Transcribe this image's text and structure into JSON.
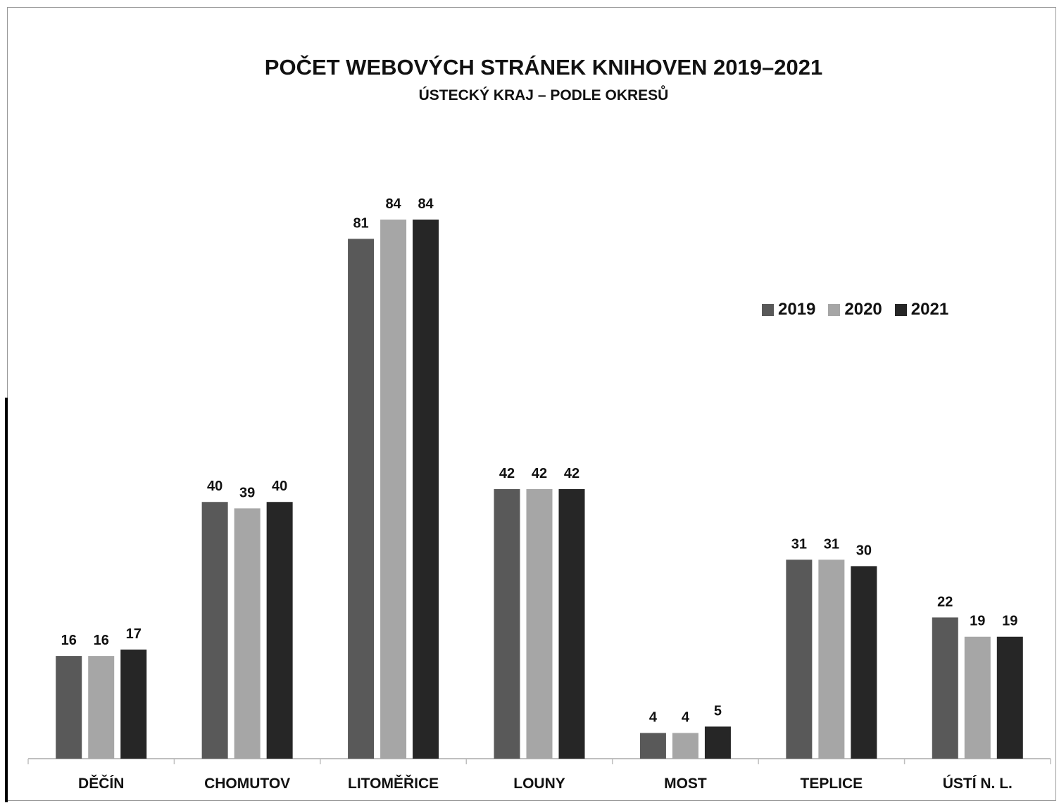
{
  "chart_data": {
    "type": "bar",
    "title": "POČET WEBOVÝCH STRÁNEK KNIHOVEN 2019–2021",
    "subtitle": "ÚSTECKÝ KRAJ – PODLE OKRESŮ",
    "categories": [
      "DĚČÍN",
      "CHOMUTOV",
      "LITOMĚŘICE",
      "LOUNY",
      "MOST",
      "TEPLICE",
      "ÚSTÍ N. L."
    ],
    "series": [
      {
        "name": "2019",
        "color": "#595959",
        "values": [
          16,
          40,
          81,
          42,
          4,
          31,
          22
        ]
      },
      {
        "name": "2020",
        "color": "#a6a6a6",
        "values": [
          16,
          39,
          84,
          42,
          4,
          31,
          19
        ]
      },
      {
        "name": "2021",
        "color": "#262626",
        "values": [
          17,
          40,
          84,
          42,
          5,
          30,
          19
        ]
      }
    ],
    "ylim": [
      0,
      84
    ],
    "data_labels": true,
    "grid": false,
    "legend_position": "right"
  }
}
